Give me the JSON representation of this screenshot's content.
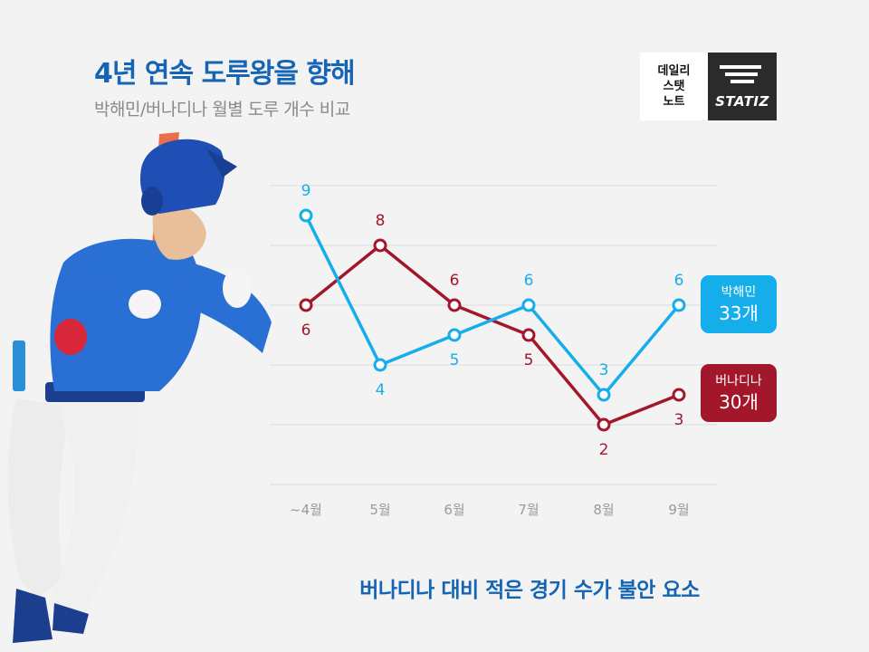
{
  "header": {
    "title": "4년 연속 도루왕을 향해",
    "subtitle": "박해민/버나디나 월별 도루 개수 비교"
  },
  "logo": {
    "lines": [
      "데일리",
      "스탯",
      "노트"
    ],
    "brand": "STATIZ"
  },
  "chart_data": {
    "type": "line",
    "categories": [
      "~4월",
      "5월",
      "6월",
      "7월",
      "8월",
      "9월"
    ],
    "series": [
      {
        "name": "박해민",
        "values": [
          9,
          4,
          5,
          6,
          3,
          6
        ],
        "color": "#15aeea",
        "total": "33개"
      },
      {
        "name": "버나디나",
        "values": [
          6,
          8,
          6,
          5,
          2,
          3
        ],
        "color": "#a3172b",
        "total": "30개"
      }
    ],
    "ylim": [
      0,
      10
    ],
    "grid": true,
    "legend_position": "right"
  },
  "footer": {
    "text": "버나디나 대비 적은 경기 수가 불안 요소"
  },
  "colors": {
    "title": "#1565b4",
    "background": "#f3f3f3"
  }
}
